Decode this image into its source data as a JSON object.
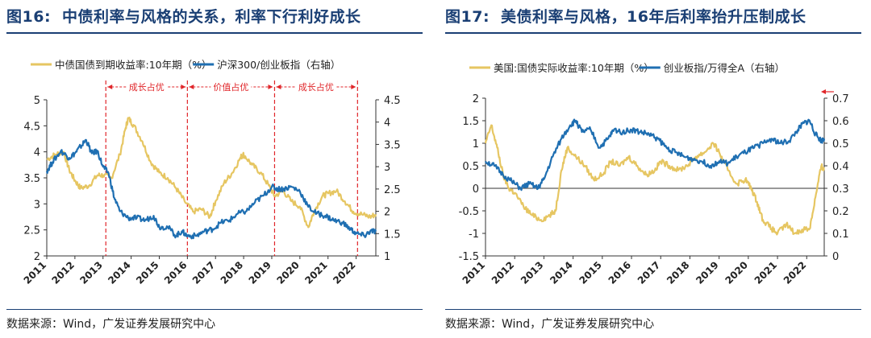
{
  "panels": [
    {
      "fig_no": "图16:",
      "title": "中债利率与风格的关系，利率下行利好成长",
      "source": "数据来源：Wind，广发证券发展研究中心"
    },
    {
      "fig_no": "图17:",
      "title": "美债利率与风格，16年后利率抬升压制成长",
      "source": "数据来源：Wind，广发证券发展研究中心"
    }
  ],
  "colors": {
    "gold": "#e6c662",
    "blue": "#1f6fb2",
    "red": "#e0262a",
    "title": "#1a3f74"
  },
  "chart_data": [
    {
      "type": "line",
      "title": "",
      "x_range": [
        2011.0,
        2022.7
      ],
      "x_ticks": [
        "2011",
        "2012",
        "2013",
        "2014",
        "2015",
        "2016",
        "2017",
        "2018",
        "2019",
        "2020",
        "2021",
        "2022"
      ],
      "y_left": {
        "min": 2,
        "max": 5,
        "ticks": [
          "2",
          "2.5",
          "3",
          "3.5",
          "4",
          "4.5",
          "5"
        ]
      },
      "y_right": {
        "min": 1,
        "max": 4.5,
        "ticks": [
          "1",
          "1.5",
          "2",
          "2.5",
          "3",
          "3.5",
          "4",
          "4.5"
        ]
      },
      "series": [
        {
          "name": "中债国债到期收益率:10年期（%）",
          "color": "#e6c662",
          "axis": "left",
          "x": [
            2011.0,
            2011.3,
            2011.6,
            2011.8,
            2012.0,
            2012.2,
            2012.5,
            2012.8,
            2013.0,
            2013.3,
            2013.6,
            2013.8,
            2013.9,
            2014.1,
            2014.4,
            2014.7,
            2015.0,
            2015.3,
            2015.6,
            2015.9,
            2016.2,
            2016.5,
            2016.8,
            2017.0,
            2017.3,
            2017.6,
            2017.9,
            2018.0,
            2018.3,
            2018.6,
            2018.9,
            2019.1,
            2019.4,
            2019.7,
            2020.0,
            2020.3,
            2020.5,
            2020.8,
            2021.0,
            2021.3,
            2021.6,
            2021.9,
            2022.2,
            2022.5,
            2022.7
          ],
          "values": [
            3.85,
            3.95,
            4.0,
            3.65,
            3.45,
            3.3,
            3.35,
            3.55,
            3.55,
            3.5,
            3.95,
            4.45,
            4.65,
            4.5,
            4.2,
            3.8,
            3.6,
            3.5,
            3.3,
            3.05,
            2.85,
            2.9,
            2.75,
            3.05,
            3.4,
            3.6,
            3.9,
            3.95,
            3.75,
            3.6,
            3.35,
            3.15,
            3.25,
            3.05,
            2.95,
            2.55,
            2.85,
            3.15,
            3.2,
            3.25,
            3.05,
            2.85,
            2.8,
            2.75,
            2.8
          ]
        },
        {
          "name": "沪深300/创业板指（右轴）",
          "color": "#1f6fb2",
          "axis": "right",
          "x": [
            2011.0,
            2011.2,
            2011.5,
            2011.8,
            2012.0,
            2012.2,
            2012.4,
            2012.6,
            2012.8,
            2013.0,
            2013.2,
            2013.4,
            2013.6,
            2013.9,
            2014.2,
            2014.5,
            2014.8,
            2015.0,
            2015.3,
            2015.6,
            2015.8,
            2016.0,
            2016.3,
            2016.6,
            2016.9,
            2017.2,
            2017.5,
            2017.8,
            2018.1,
            2018.4,
            2018.7,
            2019.0,
            2019.2,
            2019.4,
            2019.7,
            2020.0,
            2020.3,
            2020.6,
            2020.9,
            2021.2,
            2021.5,
            2021.8,
            2022.0,
            2022.3,
            2022.5,
            2022.7
          ],
          "values": [
            2.9,
            3.1,
            3.35,
            3.2,
            3.3,
            3.45,
            3.6,
            3.3,
            3.35,
            3.0,
            2.85,
            2.3,
            2.0,
            1.85,
            1.85,
            1.8,
            1.9,
            1.65,
            1.65,
            1.45,
            1.55,
            1.45,
            1.45,
            1.55,
            1.6,
            1.75,
            1.8,
            1.95,
            2.0,
            2.2,
            2.35,
            2.55,
            2.5,
            2.5,
            2.55,
            2.45,
            2.1,
            1.95,
            1.9,
            1.8,
            1.75,
            1.6,
            1.5,
            1.45,
            1.55,
            1.55
          ]
        }
      ],
      "dividers": [
        2013.1,
        2016.0,
        2019.1,
        2022.05
      ],
      "regions": [
        "成长占优",
        "价值占优",
        "成长占优"
      ]
    },
    {
      "type": "line",
      "title": "",
      "x_range": [
        2011.0,
        2022.6
      ],
      "x_ticks": [
        "2011",
        "2012",
        "2013",
        "2014",
        "2015",
        "2016",
        "2017",
        "2018",
        "2019",
        "2020",
        "2021",
        "2022"
      ],
      "y_left": {
        "min": -1.5,
        "max": 2,
        "ticks": [
          "-1.5",
          "-1",
          "-0.5",
          "0",
          "0.5",
          "1",
          "1.5",
          "2"
        ]
      },
      "y_right": {
        "min": 0,
        "max": 0.7,
        "ticks": [
          "0",
          "0.1",
          "0.2",
          "0.3",
          "0.4",
          "0.5",
          "0.6",
          "0.7"
        ]
      },
      "series": [
        {
          "name": "美国:国债实际收益率:10年期（%）",
          "color": "#e6c662",
          "axis": "left",
          "x": [
            2011.0,
            2011.2,
            2011.4,
            2011.6,
            2011.8,
            2012.0,
            2012.3,
            2012.6,
            2012.9,
            2013.2,
            2013.4,
            2013.6,
            2013.8,
            2014.1,
            2014.4,
            2014.7,
            2015.0,
            2015.3,
            2015.6,
            2015.9,
            2016.2,
            2016.5,
            2016.8,
            2017.0,
            2017.3,
            2017.6,
            2017.9,
            2018.2,
            2018.5,
            2018.8,
            2019.0,
            2019.3,
            2019.6,
            2019.9,
            2020.1,
            2020.3,
            2020.5,
            2020.8,
            2021.0,
            2021.3,
            2021.6,
            2021.9,
            2022.1,
            2022.3,
            2022.5,
            2022.6
          ],
          "values": [
            1.0,
            1.4,
            0.9,
            0.3,
            0.0,
            -0.1,
            -0.4,
            -0.6,
            -0.7,
            -0.6,
            -0.5,
            0.4,
            0.9,
            0.7,
            0.5,
            0.2,
            0.3,
            0.6,
            0.5,
            0.7,
            0.5,
            0.3,
            0.4,
            0.6,
            0.5,
            0.4,
            0.5,
            0.7,
            0.8,
            1.0,
            0.8,
            0.4,
            0.1,
            0.2,
            0.0,
            -0.3,
            -0.7,
            -0.9,
            -1.0,
            -0.8,
            -1.0,
            -0.9,
            -0.9,
            -0.2,
            0.5,
            0.4
          ]
        },
        {
          "name": "创业板指/万得全A（右轴）",
          "color": "#1f6fb2",
          "axis": "right",
          "x": [
            2011.0,
            2011.3,
            2011.6,
            2011.9,
            2012.2,
            2012.5,
            2012.8,
            2013.0,
            2013.3,
            2013.6,
            2013.9,
            2014.1,
            2014.3,
            2014.6,
            2014.9,
            2015.2,
            2015.4,
            2015.7,
            2016.0,
            2016.3,
            2016.6,
            2016.9,
            2017.2,
            2017.5,
            2017.8,
            2018.1,
            2018.4,
            2018.7,
            2019.0,
            2019.3,
            2019.6,
            2019.9,
            2020.2,
            2020.5,
            2020.8,
            2021.1,
            2021.4,
            2021.7,
            2021.9,
            2022.1,
            2022.3,
            2022.5,
            2022.6
          ],
          "values": [
            0.42,
            0.4,
            0.36,
            0.33,
            0.3,
            0.32,
            0.3,
            0.34,
            0.44,
            0.52,
            0.58,
            0.6,
            0.55,
            0.56,
            0.48,
            0.52,
            0.56,
            0.55,
            0.56,
            0.55,
            0.54,
            0.52,
            0.48,
            0.46,
            0.44,
            0.43,
            0.42,
            0.4,
            0.42,
            0.41,
            0.44,
            0.46,
            0.48,
            0.5,
            0.52,
            0.5,
            0.51,
            0.56,
            0.59,
            0.6,
            0.54,
            0.51,
            0.52
          ]
        }
      ],
      "dividers": [],
      "regions": []
    }
  ]
}
